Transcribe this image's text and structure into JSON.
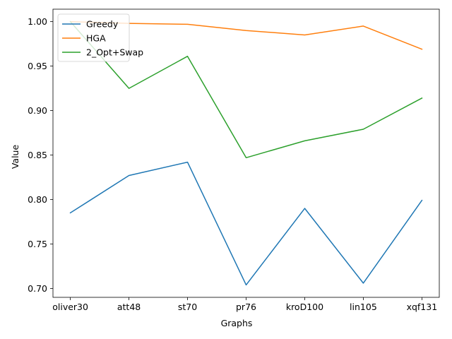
{
  "chart_data": {
    "type": "line",
    "title": "",
    "xlabel": "Graphs",
    "ylabel": "Value",
    "categories": [
      "oliver30",
      "att48",
      "st70",
      "pr76",
      "kroD100",
      "lin105",
      "xqf131"
    ],
    "ylim": [
      0.69,
      1.014
    ],
    "yticks": [
      "0.70",
      "0.75",
      "0.80",
      "0.85",
      "0.90",
      "0.95",
      "1.00"
    ],
    "grid": false,
    "legend_position": "top-left",
    "series": [
      {
        "name": "Greedy",
        "color": "#1f77b4",
        "values": [
          0.785,
          0.827,
          0.842,
          0.704,
          0.79,
          0.706,
          0.799
        ]
      },
      {
        "name": "HGA",
        "color": "#ff7f0e",
        "values": [
          1.0,
          0.998,
          0.997,
          0.99,
          0.985,
          0.995,
          0.969
        ]
      },
      {
        "name": "2_Opt+Swap",
        "color": "#2ca02c",
        "values": [
          1.0,
          0.925,
          0.961,
          0.847,
          0.866,
          0.879,
          0.914
        ]
      }
    ]
  }
}
